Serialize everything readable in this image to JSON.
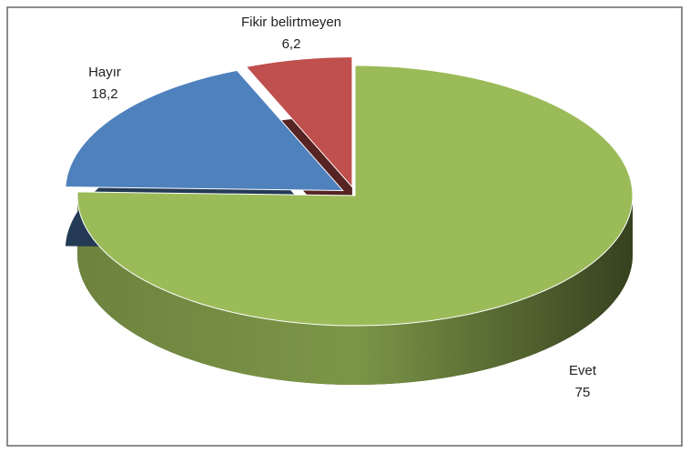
{
  "chart_data": {
    "type": "pie",
    "categories": [
      "Evet",
      "Hayır",
      "Fikir belirtmeyen"
    ],
    "values": [
      75,
      18.2,
      6.2
    ],
    "value_labels": [
      "75",
      "18,2",
      "6,2"
    ],
    "colors": [
      "#9bbb59",
      "#4f81bd",
      "#c0504d"
    ],
    "exploded": [
      false,
      true,
      true
    ]
  }
}
